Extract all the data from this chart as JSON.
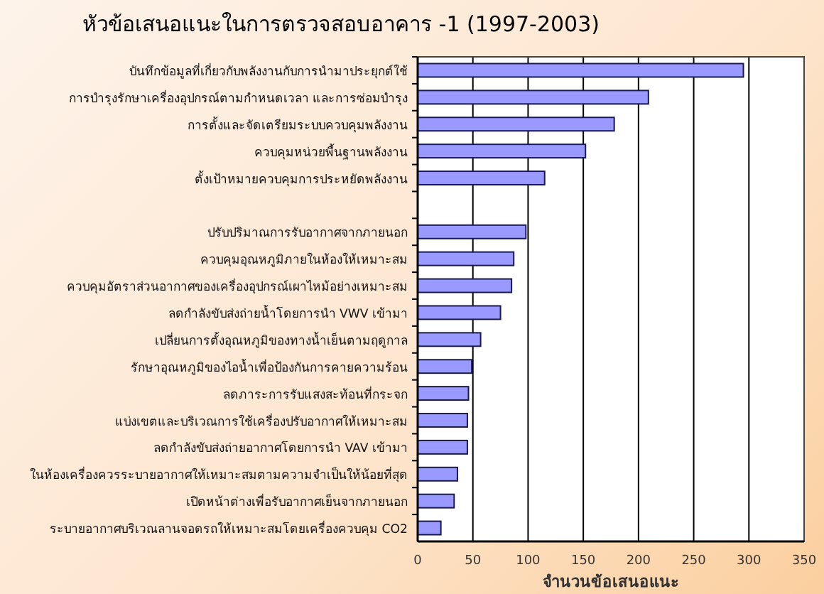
{
  "chart_data": {
    "type": "bar",
    "orientation": "horizontal",
    "title": "หัวข้อเสนอแนะในการตรวจสอบอาคาร -1  (1997-2003)",
    "xlabel": "จำนวนข้อเสนอแนะ",
    "categories": [
      "บันทึกข้อมูลที่เกี่ยวกับพลังงานกับการนำมาประยุกต์ใช้",
      "การบำรุงรักษาเครื่องอุปกรณ์ตามกำหนดเวลา และการซ่อมบำรุง",
      "การตั้งและจัดเตรียมระบบควบคุมพลังงาน",
      "ควบคุมหน่วยพื้นฐานพลังงาน",
      "ตั้งเป้าหมายควบคุมการประหยัดพลังงาน",
      null,
      "ปรับปริมาณการรับอากาศจากภายนอก",
      "ควบคุมอุณหภูมิภายในห้องให้เหมาะสม",
      "ควบคุมอัตราส่วนอากาศของเครื่องอุปกรณ์เผาไหม้อย่างเหมาะสม",
      "ลดกำลังขับส่งถ่ายน้ำโดยการนำ VWV เข้ามา",
      "เปลี่ยนการตั้งอุณหภูมิของทางน้ำเย็นตามฤดูกาล",
      "รักษาอุณหภูมิของไอน้ำเพื่อป้องกันการคายความร้อน",
      "ลดภาระการรับแสงสะท้อนที่กระจก",
      "แบ่งเขตและบริเวณการใช้เครื่องปรับอากาศให้เหมาะสม",
      "ลดกำลังขับส่งถ่ายอากาศโดยการนำ VAV เข้ามา",
      "ในห้องเครื่องควรระบายอากาศให้เหมาะสมตามความจำเป็นให้น้อยที่สุด",
      "เปิดหน้าต่างเพื่อรับอากาศเย็นจากภายนอก",
      "ระบายอากาศบริเวณลานจอดรถให้เหมาะสมโดยเครื่องควบคุม CO2"
    ],
    "values": [
      295,
      209,
      178,
      152,
      115,
      null,
      98,
      87,
      85,
      75,
      57,
      49,
      46,
      45,
      45,
      36,
      33,
      21
    ],
    "color": "#9999ff",
    "xlim": [
      0,
      350
    ],
    "xticks": [
      0,
      50,
      100,
      150,
      200,
      250,
      300,
      350
    ],
    "grid": "x"
  }
}
